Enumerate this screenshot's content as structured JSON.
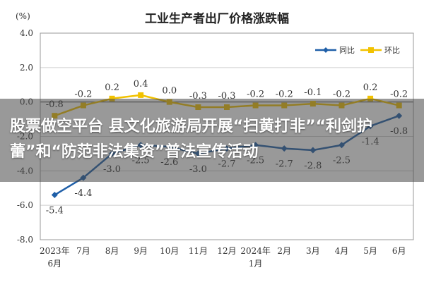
{
  "chart_data": {
    "type": "line",
    "title": "工业生产者出厂价格涨跌幅",
    "ylabel": "(%)",
    "ylim": [
      -8.0,
      4.0
    ],
    "yticks": [
      "4.0",
      "2.0",
      "0.0",
      "-2.0",
      "-4.0",
      "-6.0",
      "-8.0"
    ],
    "xlabels": [
      [
        "2023年",
        "6月"
      ],
      [
        "7月"
      ],
      [
        "8月"
      ],
      [
        "9月"
      ],
      [
        "10月"
      ],
      [
        "11月"
      ],
      [
        "12月"
      ],
      [
        "2024年",
        "1月"
      ],
      [
        "2月"
      ],
      [
        "3月"
      ],
      [
        "4月"
      ],
      [
        "5月"
      ],
      [
        "6月"
      ]
    ],
    "legend_position": "top-right",
    "series": [
      {
        "name": "同比",
        "color": "#1f5fa8",
        "values": [
          -5.4,
          -4.4,
          -3.0,
          -2.5,
          -2.6,
          -3.0,
          -2.7,
          -2.5,
          -2.7,
          -2.8,
          -2.5,
          -1.4,
          -0.8
        ],
        "labels": [
          "-5.4",
          "-4.4",
          "-3.0",
          "-2.5",
          "-2.6",
          "-3.0",
          "-2.7",
          "-2.5",
          "-2.7",
          "-2.8",
          "-2.5",
          "-1.4",
          "-0.8"
        ]
      },
      {
        "name": "环比",
        "color": "#f2c200",
        "values": [
          -0.8,
          -0.2,
          0.2,
          0.4,
          0.0,
          -0.3,
          -0.3,
          -0.2,
          -0.2,
          -0.1,
          -0.2,
          0.2,
          -0.2
        ],
        "labels": [
          "-0.8",
          "-0.2",
          "0.2",
          "0.4",
          "0.0",
          "-0.3",
          "-0.3",
          "-0.2",
          "-0.2",
          "-0.1",
          "-0.2",
          "0.2",
          "-0.2"
        ]
      }
    ]
  },
  "overlay": {
    "headline": "股票做空平台 县文化旅游局开展“扫黄打非”“利剑护蕾”和“防范非法集资”普法宣传活动"
  }
}
